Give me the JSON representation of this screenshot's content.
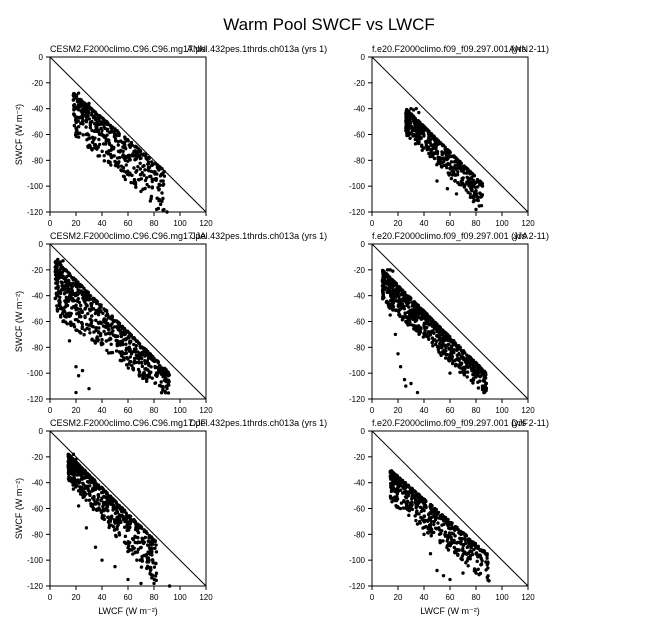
{
  "title": "Warm Pool SWCF vs LWCF",
  "chart_data": [
    {
      "type": "scatter",
      "left_label": "CESM2.F2000climo.C96.C96.mg17.pel.432pes.1thrds.ch013a (yrs 1)",
      "right_label": "ANN",
      "xlabel": "",
      "ylabel": "SWCF (W m⁻²)",
      "xlim": [
        0,
        120
      ],
      "ylim": [
        -120,
        0
      ],
      "xticks": [
        "0",
        "20",
        "40",
        "60",
        "80",
        "100",
        "120"
      ],
      "yticks": [
        "0",
        "-20",
        "-40",
        "-60",
        "-80",
        "-100",
        "-120"
      ],
      "reference_line": [
        [
          0,
          0
        ],
        [
          120,
          -120
        ]
      ],
      "cloud": {
        "n": 460,
        "seed": 11,
        "x_range": [
          18,
          88
        ],
        "y_upper": [
          -28,
          -88
        ],
        "y_lower": [
          -60,
          -122
        ],
        "skew": 0.7
      },
      "points": [
        [
          20,
          -30
        ],
        [
          22,
          -28
        ],
        [
          24,
          -35
        ],
        [
          30,
          -36
        ],
        [
          20,
          -55
        ],
        [
          22,
          -62
        ],
        [
          28,
          -60
        ],
        [
          35,
          -68
        ],
        [
          45,
          -75
        ],
        [
          55,
          -88
        ],
        [
          65,
          -95
        ],
        [
          70,
          -104
        ],
        [
          78,
          -108
        ],
        [
          82,
          -118
        ],
        [
          90,
          -120
        ],
        [
          87,
          -96
        ],
        [
          85,
          -92
        ]
      ]
    },
    {
      "type": "scatter",
      "left_label": "f.e20.F2000climo.f09_f09.297.001 (yrs 2-11)",
      "right_label": "ANN",
      "xlabel": "",
      "ylabel": "",
      "xlim": [
        0,
        120
      ],
      "ylim": [
        -120,
        0
      ],
      "xticks": [
        "0",
        "20",
        "40",
        "60",
        "80",
        "100",
        "120"
      ],
      "yticks": [
        "0",
        "-20",
        "-40",
        "-60",
        "-80",
        "-100",
        "-120"
      ],
      "reference_line": [
        [
          0,
          0
        ],
        [
          120,
          -120
        ]
      ],
      "cloud": {
        "n": 460,
        "seed": 23,
        "x_range": [
          26,
          85
        ],
        "y_upper": [
          -40,
          -98
        ],
        "y_lower": [
          -60,
          -118
        ],
        "skew": 0.55
      },
      "points": [
        [
          28,
          -42
        ],
        [
          30,
          -40
        ],
        [
          32,
          -41
        ],
        [
          34,
          -40
        ],
        [
          36,
          -43
        ],
        [
          28,
          -50
        ],
        [
          30,
          -55
        ],
        [
          32,
          -60
        ],
        [
          50,
          -96
        ],
        [
          58,
          -102
        ],
        [
          65,
          -106
        ],
        [
          78,
          -112
        ],
        [
          80,
          -118
        ],
        [
          85,
          -100
        ]
      ]
    },
    {
      "type": "scatter",
      "left_label": "CESM2.F2000climo.C96.C96.mg17.pel.432pes.1thrds.ch013a (yrs 1)",
      "right_label": "JJA",
      "xlabel": "",
      "ylabel": "SWCF (W m⁻²)",
      "xlim": [
        0,
        120
      ],
      "ylim": [
        -120,
        0
      ],
      "xticks": [
        "0",
        "20",
        "40",
        "60",
        "80",
        "100",
        "120"
      ],
      "yticks": [
        "0",
        "-20",
        "-40",
        "-60",
        "-80",
        "-100",
        "-120"
      ],
      "reference_line": [
        [
          0,
          0
        ],
        [
          120,
          -120
        ]
      ],
      "cloud": {
        "n": 720,
        "seed": 37,
        "x_range": [
          4,
          92
        ],
        "y_upper": [
          -12,
          -100
        ],
        "y_lower": [
          -55,
          -120
        ],
        "skew": 0.5
      },
      "points": [
        [
          6,
          -12
        ],
        [
          8,
          -14
        ],
        [
          10,
          -13
        ],
        [
          4,
          -18
        ],
        [
          5,
          -25
        ],
        [
          6,
          -40
        ],
        [
          8,
          -50
        ],
        [
          10,
          -60
        ],
        [
          15,
          -75
        ],
        [
          20,
          -95
        ],
        [
          22,
          -102
        ],
        [
          25,
          -98
        ],
        [
          20,
          -115
        ],
        [
          30,
          -112
        ],
        [
          90,
          -110
        ],
        [
          88,
          -102
        ]
      ]
    },
    {
      "type": "scatter",
      "left_label": "f.e20.F2000climo.f09_f09.297.001 (yrs 2-11)",
      "right_label": "JJA",
      "xlabel": "",
      "ylabel": "",
      "xlim": [
        0,
        120
      ],
      "ylim": [
        -120,
        0
      ],
      "xticks": [
        "0",
        "20",
        "40",
        "60",
        "80",
        "100",
        "120"
      ],
      "yticks": [
        "0",
        "-20",
        "-40",
        "-60",
        "-80",
        "-100",
        "-120"
      ],
      "reference_line": [
        [
          0,
          0
        ],
        [
          120,
          -120
        ]
      ],
      "cloud": {
        "n": 760,
        "seed": 51,
        "x_range": [
          8,
          88
        ],
        "y_upper": [
          -20,
          -100
        ],
        "y_lower": [
          -45,
          -118
        ],
        "skew": 0.6
      },
      "points": [
        [
          12,
          -20
        ],
        [
          14,
          -20
        ],
        [
          16,
          -21
        ],
        [
          10,
          -23
        ],
        [
          8,
          -28
        ],
        [
          9,
          -35
        ],
        [
          12,
          -45
        ],
        [
          14,
          -55
        ],
        [
          18,
          -70
        ],
        [
          20,
          -85
        ],
        [
          22,
          -95
        ],
        [
          25,
          -105
        ],
        [
          26,
          -110
        ],
        [
          30,
          -108
        ],
        [
          35,
          -115
        ],
        [
          60,
          -100
        ],
        [
          85,
          -110
        ],
        [
          88,
          -108
        ]
      ]
    },
    {
      "type": "scatter",
      "left_label": "CESM2.F2000climo.C96.C96.mg17.pel.432pes.1thrds.ch013a (yrs 1)",
      "right_label": "DJF",
      "xlabel": "LWCF (W m⁻²)",
      "ylabel": "SWCF (W m⁻²)",
      "xlim": [
        0,
        120
      ],
      "ylim": [
        -120,
        0
      ],
      "xticks": [
        "0",
        "20",
        "40",
        "60",
        "80",
        "100",
        "120"
      ],
      "yticks": [
        "0",
        "-20",
        "-40",
        "-60",
        "-80",
        "-100",
        "-120"
      ],
      "reference_line": [
        [
          0,
          0
        ],
        [
          120,
          -120
        ]
      ],
      "cloud": {
        "n": 600,
        "seed": 67,
        "x_range": [
          14,
          82
        ],
        "y_upper": [
          -18,
          -86
        ],
        "y_lower": [
          -38,
          -120
        ],
        "skew": 0.65
      },
      "points": [
        [
          16,
          -20
        ],
        [
          18,
          -18
        ],
        [
          20,
          -22
        ],
        [
          15,
          -30
        ],
        [
          18,
          -45
        ],
        [
          22,
          -58
        ],
        [
          28,
          -75
        ],
        [
          35,
          -90
        ],
        [
          40,
          -100
        ],
        [
          50,
          -105
        ],
        [
          60,
          -115
        ],
        [
          70,
          -118
        ],
        [
          80,
          -118
        ],
        [
          92,
          -120
        ]
      ]
    },
    {
      "type": "scatter",
      "left_label": "f.e20.F2000climo.f09_f09.297.001 (yrs 2-11)",
      "right_label": "DJF",
      "xlabel": "LWCF (W m⁻²)",
      "ylabel": "",
      "xlim": [
        0,
        120
      ],
      "ylim": [
        -120,
        0
      ],
      "xticks": [
        "0",
        "20",
        "40",
        "60",
        "80",
        "100",
        "120"
      ],
      "yticks": [
        "0",
        "-20",
        "-40",
        "-60",
        "-80",
        "-100",
        "-120"
      ],
      "reference_line": [
        [
          0,
          0
        ],
        [
          120,
          -120
        ]
      ],
      "cloud": {
        "n": 520,
        "seed": 83,
        "x_range": [
          14,
          90
        ],
        "y_upper": [
          -30,
          -96
        ],
        "y_lower": [
          -55,
          -118
        ],
        "skew": 0.6
      },
      "points": [
        [
          14,
          -32
        ],
        [
          16,
          -33
        ],
        [
          18,
          -36
        ],
        [
          20,
          -40
        ],
        [
          30,
          -60
        ],
        [
          35,
          -72
        ],
        [
          40,
          -80
        ],
        [
          45,
          -95
        ],
        [
          50,
          -108
        ],
        [
          55,
          -112
        ],
        [
          60,
          -115
        ],
        [
          70,
          -110
        ],
        [
          80,
          -110
        ],
        [
          90,
          -116
        ]
      ]
    }
  ]
}
